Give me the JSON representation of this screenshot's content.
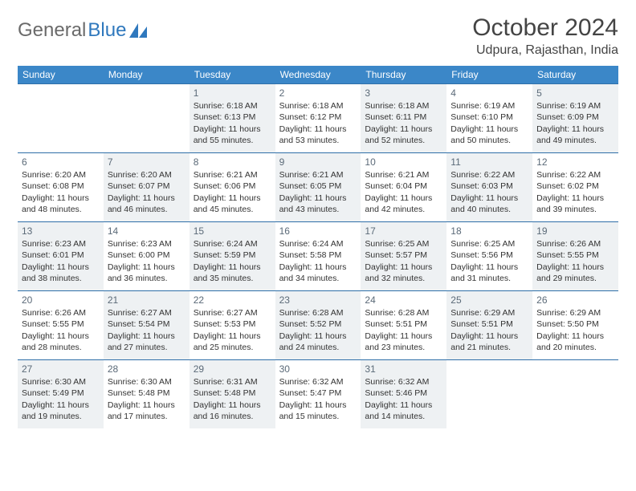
{
  "brand": {
    "part1": "General",
    "part2": "Blue"
  },
  "title": "October 2024",
  "location": "Udpura, Rajasthan, India",
  "colors": {
    "header_bg": "#3b87c8",
    "header_fg": "#ffffff",
    "border": "#2f6fa8",
    "shaded": "#eef1f3",
    "text": "#333333",
    "daynum": "#5b6a78",
    "brand_gray": "#6a6a6a",
    "brand_blue": "#2f78bd"
  },
  "dow": [
    "Sunday",
    "Monday",
    "Tuesday",
    "Wednesday",
    "Thursday",
    "Friday",
    "Saturday"
  ],
  "weeks": [
    [
      {
        "empty": true
      },
      {
        "empty": true
      },
      {
        "n": "1",
        "shaded": true,
        "sr": "Sunrise: 6:18 AM",
        "ss": "Sunset: 6:13 PM",
        "dl": "Daylight: 11 hours and 55 minutes."
      },
      {
        "n": "2",
        "shaded": false,
        "sr": "Sunrise: 6:18 AM",
        "ss": "Sunset: 6:12 PM",
        "dl": "Daylight: 11 hours and 53 minutes."
      },
      {
        "n": "3",
        "shaded": true,
        "sr": "Sunrise: 6:18 AM",
        "ss": "Sunset: 6:11 PM",
        "dl": "Daylight: 11 hours and 52 minutes."
      },
      {
        "n": "4",
        "shaded": false,
        "sr": "Sunrise: 6:19 AM",
        "ss": "Sunset: 6:10 PM",
        "dl": "Daylight: 11 hours and 50 minutes."
      },
      {
        "n": "5",
        "shaded": true,
        "sr": "Sunrise: 6:19 AM",
        "ss": "Sunset: 6:09 PM",
        "dl": "Daylight: 11 hours and 49 minutes."
      }
    ],
    [
      {
        "n": "6",
        "shaded": false,
        "sr": "Sunrise: 6:20 AM",
        "ss": "Sunset: 6:08 PM",
        "dl": "Daylight: 11 hours and 48 minutes."
      },
      {
        "n": "7",
        "shaded": true,
        "sr": "Sunrise: 6:20 AM",
        "ss": "Sunset: 6:07 PM",
        "dl": "Daylight: 11 hours and 46 minutes."
      },
      {
        "n": "8",
        "shaded": false,
        "sr": "Sunrise: 6:21 AM",
        "ss": "Sunset: 6:06 PM",
        "dl": "Daylight: 11 hours and 45 minutes."
      },
      {
        "n": "9",
        "shaded": true,
        "sr": "Sunrise: 6:21 AM",
        "ss": "Sunset: 6:05 PM",
        "dl": "Daylight: 11 hours and 43 minutes."
      },
      {
        "n": "10",
        "shaded": false,
        "sr": "Sunrise: 6:21 AM",
        "ss": "Sunset: 6:04 PM",
        "dl": "Daylight: 11 hours and 42 minutes."
      },
      {
        "n": "11",
        "shaded": true,
        "sr": "Sunrise: 6:22 AM",
        "ss": "Sunset: 6:03 PM",
        "dl": "Daylight: 11 hours and 40 minutes."
      },
      {
        "n": "12",
        "shaded": false,
        "sr": "Sunrise: 6:22 AM",
        "ss": "Sunset: 6:02 PM",
        "dl": "Daylight: 11 hours and 39 minutes."
      }
    ],
    [
      {
        "n": "13",
        "shaded": true,
        "sr": "Sunrise: 6:23 AM",
        "ss": "Sunset: 6:01 PM",
        "dl": "Daylight: 11 hours and 38 minutes."
      },
      {
        "n": "14",
        "shaded": false,
        "sr": "Sunrise: 6:23 AM",
        "ss": "Sunset: 6:00 PM",
        "dl": "Daylight: 11 hours and 36 minutes."
      },
      {
        "n": "15",
        "shaded": true,
        "sr": "Sunrise: 6:24 AM",
        "ss": "Sunset: 5:59 PM",
        "dl": "Daylight: 11 hours and 35 minutes."
      },
      {
        "n": "16",
        "shaded": false,
        "sr": "Sunrise: 6:24 AM",
        "ss": "Sunset: 5:58 PM",
        "dl": "Daylight: 11 hours and 34 minutes."
      },
      {
        "n": "17",
        "shaded": true,
        "sr": "Sunrise: 6:25 AM",
        "ss": "Sunset: 5:57 PM",
        "dl": "Daylight: 11 hours and 32 minutes."
      },
      {
        "n": "18",
        "shaded": false,
        "sr": "Sunrise: 6:25 AM",
        "ss": "Sunset: 5:56 PM",
        "dl": "Daylight: 11 hours and 31 minutes."
      },
      {
        "n": "19",
        "shaded": true,
        "sr": "Sunrise: 6:26 AM",
        "ss": "Sunset: 5:55 PM",
        "dl": "Daylight: 11 hours and 29 minutes."
      }
    ],
    [
      {
        "n": "20",
        "shaded": false,
        "sr": "Sunrise: 6:26 AM",
        "ss": "Sunset: 5:55 PM",
        "dl": "Daylight: 11 hours and 28 minutes."
      },
      {
        "n": "21",
        "shaded": true,
        "sr": "Sunrise: 6:27 AM",
        "ss": "Sunset: 5:54 PM",
        "dl": "Daylight: 11 hours and 27 minutes."
      },
      {
        "n": "22",
        "shaded": false,
        "sr": "Sunrise: 6:27 AM",
        "ss": "Sunset: 5:53 PM",
        "dl": "Daylight: 11 hours and 25 minutes."
      },
      {
        "n": "23",
        "shaded": true,
        "sr": "Sunrise: 6:28 AM",
        "ss": "Sunset: 5:52 PM",
        "dl": "Daylight: 11 hours and 24 minutes."
      },
      {
        "n": "24",
        "shaded": false,
        "sr": "Sunrise: 6:28 AM",
        "ss": "Sunset: 5:51 PM",
        "dl": "Daylight: 11 hours and 23 minutes."
      },
      {
        "n": "25",
        "shaded": true,
        "sr": "Sunrise: 6:29 AM",
        "ss": "Sunset: 5:51 PM",
        "dl": "Daylight: 11 hours and 21 minutes."
      },
      {
        "n": "26",
        "shaded": false,
        "sr": "Sunrise: 6:29 AM",
        "ss": "Sunset: 5:50 PM",
        "dl": "Daylight: 11 hours and 20 minutes."
      }
    ],
    [
      {
        "n": "27",
        "shaded": true,
        "sr": "Sunrise: 6:30 AM",
        "ss": "Sunset: 5:49 PM",
        "dl": "Daylight: 11 hours and 19 minutes."
      },
      {
        "n": "28",
        "shaded": false,
        "sr": "Sunrise: 6:30 AM",
        "ss": "Sunset: 5:48 PM",
        "dl": "Daylight: 11 hours and 17 minutes."
      },
      {
        "n": "29",
        "shaded": true,
        "sr": "Sunrise: 6:31 AM",
        "ss": "Sunset: 5:48 PM",
        "dl": "Daylight: 11 hours and 16 minutes."
      },
      {
        "n": "30",
        "shaded": false,
        "sr": "Sunrise: 6:32 AM",
        "ss": "Sunset: 5:47 PM",
        "dl": "Daylight: 11 hours and 15 minutes."
      },
      {
        "n": "31",
        "shaded": true,
        "sr": "Sunrise: 6:32 AM",
        "ss": "Sunset: 5:46 PM",
        "dl": "Daylight: 11 hours and 14 minutes."
      },
      {
        "empty": true
      },
      {
        "empty": true
      }
    ]
  ]
}
